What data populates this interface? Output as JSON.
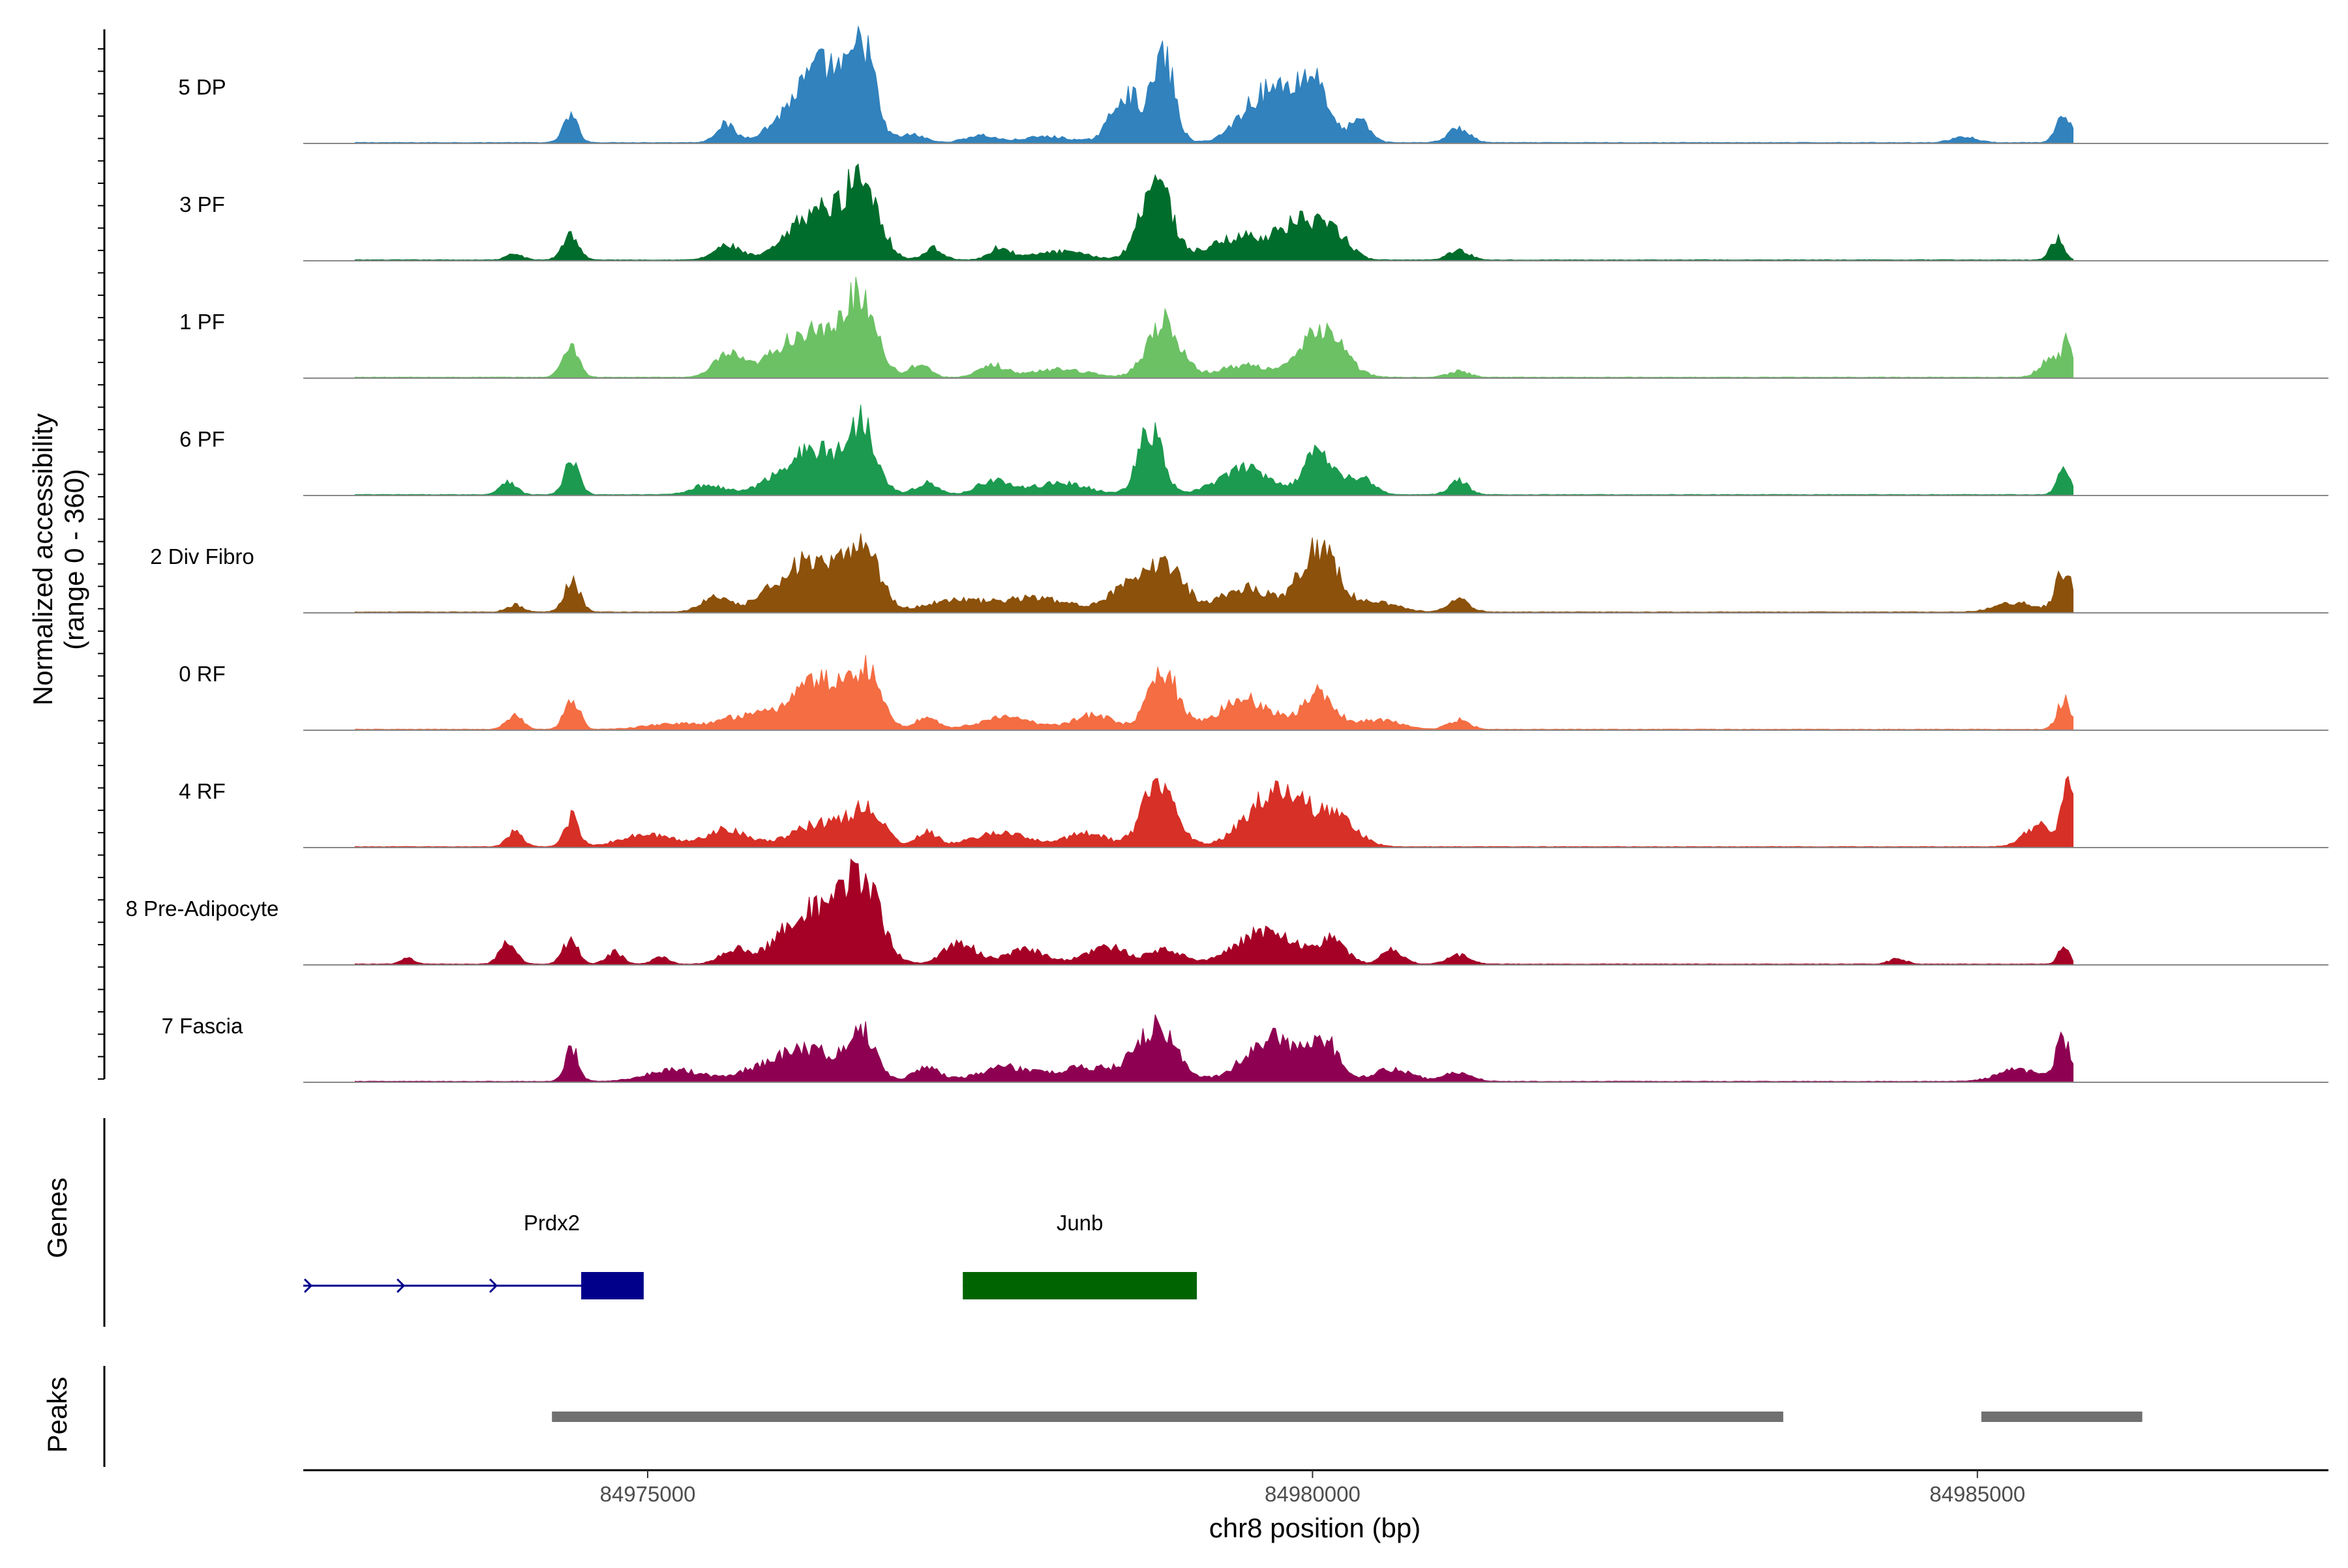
{
  "chart_data": {
    "type": "area",
    "chromosome": "chr8",
    "xlabel": "chr8 position (bp)",
    "ylabel": "Normalized accessibility",
    "ylabel_range": "(range 0 - 360)",
    "ylim": [
      0,
      360
    ],
    "xlim": [
      84972410,
      84987640
    ],
    "x_ticks": [
      84975000,
      84980000,
      84985000
    ],
    "x_tick_labels": [
      "84975000",
      "84980000",
      "84985000"
    ],
    "signal_range": [
      84972800,
      84985720
    ],
    "baseline_color": "#888888",
    "tracks": [
      {
        "name": "5 DP",
        "color": "#3182bd"
      },
      {
        "name": "3 PF",
        "color": "#006d2c"
      },
      {
        "name": "1 PF",
        "color": "#6cc164"
      },
      {
        "name": "6 PF",
        "color": "#1c9a4f"
      },
      {
        "name": "2 Div Fibro",
        "color": "#8c510a"
      },
      {
        "name": "0 RF",
        "color": "#f46d43"
      },
      {
        "name": "4 RF",
        "color": "#d73027"
      },
      {
        "name": "8 Pre-Adipocyte",
        "color": "#a50026"
      },
      {
        "name": "7 Fascia",
        "color": "#8e0152"
      }
    ],
    "peaks_by_track": [
      [
        [
          84974420,
          0.22,
          55
        ],
        [
          84975580,
          0.15,
          70
        ],
        [
          84976200,
          0.28,
          220
        ],
        [
          84976400,
          0.45,
          200
        ],
        [
          84976630,
          0.62,
          75
        ],
        [
          84977000,
          0.06,
          90
        ],
        [
          84977500,
          0.06,
          110
        ],
        [
          84978000,
          0.05,
          180
        ],
        [
          84978600,
          0.42,
          110
        ],
        [
          84978880,
          0.72,
          80
        ],
        [
          84979600,
          0.35,
          160
        ],
        [
          84979900,
          0.42,
          150
        ],
        [
          84980050,
          0.28,
          80
        ],
        [
          84980350,
          0.18,
          80
        ],
        [
          84981100,
          0.12,
          80
        ],
        [
          84984900,
          0.05,
          90
        ],
        [
          84985650,
          0.22,
          55
        ]
      ],
      [
        [
          84974000,
          0.05,
          60
        ],
        [
          84974420,
          0.22,
          60
        ],
        [
          84975600,
          0.12,
          100
        ],
        [
          84976280,
          0.42,
          200
        ],
        [
          84976620,
          0.62,
          120
        ],
        [
          84977150,
          0.1,
          70
        ],
        [
          84977650,
          0.1,
          80
        ],
        [
          84978100,
          0.07,
          200
        ],
        [
          84978820,
          0.72,
          110
        ],
        [
          84979500,
          0.2,
          250
        ],
        [
          84979950,
          0.3,
          150
        ],
        [
          84980200,
          0.15,
          100
        ],
        [
          84981100,
          0.08,
          80
        ],
        [
          84985600,
          0.18,
          50
        ]
      ],
      [
        [
          84974420,
          0.28,
          60
        ],
        [
          84975600,
          0.18,
          100
        ],
        [
          84976200,
          0.38,
          240
        ],
        [
          84976600,
          0.62,
          120
        ],
        [
          84977050,
          0.12,
          70
        ],
        [
          84977600,
          0.1,
          100
        ],
        [
          84978100,
          0.07,
          200
        ],
        [
          84978880,
          0.48,
          120
        ],
        [
          84979500,
          0.1,
          200
        ],
        [
          84980080,
          0.42,
          150
        ],
        [
          84981100,
          0.05,
          80
        ],
        [
          84985550,
          0.15,
          80
        ],
        [
          84985680,
          0.28,
          40
        ]
      ],
      [
        [
          84973950,
          0.12,
          60
        ],
        [
          84974430,
          0.28,
          55
        ],
        [
          84975450,
          0.08,
          120
        ],
        [
          84976250,
          0.38,
          240
        ],
        [
          84976620,
          0.52,
          100
        ],
        [
          84977100,
          0.1,
          80
        ],
        [
          84977600,
          0.12,
          120
        ],
        [
          84978100,
          0.1,
          200
        ],
        [
          84978780,
          0.55,
          90
        ],
        [
          84979500,
          0.22,
          200
        ],
        [
          84980050,
          0.4,
          100
        ],
        [
          84980350,
          0.15,
          100
        ],
        [
          84981100,
          0.12,
          70
        ],
        [
          84985650,
          0.2,
          50
        ]
      ],
      [
        [
          84974000,
          0.06,
          60
        ],
        [
          84974430,
          0.27,
          60
        ],
        [
          84975500,
          0.12,
          100
        ],
        [
          84976200,
          0.42,
          240
        ],
        [
          84976620,
          0.52,
          120
        ],
        [
          84977300,
          0.1,
          200
        ],
        [
          84977900,
          0.12,
          250
        ],
        [
          84978900,
          0.4,
          130
        ],
        [
          84978600,
          0.2,
          150
        ],
        [
          84979500,
          0.2,
          200
        ],
        [
          84980050,
          0.55,
          140
        ],
        [
          84980500,
          0.08,
          150
        ],
        [
          84981100,
          0.1,
          80
        ],
        [
          84985300,
          0.08,
          150
        ],
        [
          84985650,
          0.35,
          60
        ]
      ],
      [
        [
          84974000,
          0.12,
          60
        ],
        [
          84974430,
          0.27,
          55
        ],
        [
          84975200,
          0.05,
          200
        ],
        [
          84975700,
          0.1,
          150
        ],
        [
          84976300,
          0.42,
          240
        ],
        [
          84976650,
          0.38,
          100
        ],
        [
          84977100,
          0.1,
          80
        ],
        [
          84977700,
          0.1,
          200
        ],
        [
          84978350,
          0.12,
          150
        ],
        [
          84978880,
          0.48,
          110
        ],
        [
          84979500,
          0.25,
          200
        ],
        [
          84980050,
          0.3,
          120
        ],
        [
          84980500,
          0.08,
          150
        ],
        [
          84981100,
          0.08,
          80
        ],
        [
          84985650,
          0.25,
          50
        ]
      ],
      [
        [
          84974000,
          0.12,
          60
        ],
        [
          84974430,
          0.25,
          55
        ],
        [
          84975000,
          0.1,
          200
        ],
        [
          84975600,
          0.15,
          150
        ],
        [
          84976300,
          0.2,
          200
        ],
        [
          84976650,
          0.3,
          120
        ],
        [
          84977100,
          0.12,
          80
        ],
        [
          84977650,
          0.12,
          200
        ],
        [
          84978300,
          0.12,
          150
        ],
        [
          84978850,
          0.58,
          120
        ],
        [
          84979750,
          0.5,
          220
        ],
        [
          84980200,
          0.2,
          140
        ],
        [
          84985450,
          0.18,
          100
        ],
        [
          84985680,
          0.55,
          45
        ]
      ],
      [
        [
          84973200,
          0.05,
          50
        ],
        [
          84973950,
          0.18,
          60
        ],
        [
          84974420,
          0.2,
          60
        ],
        [
          84974750,
          0.1,
          60
        ],
        [
          84975100,
          0.06,
          60
        ],
        [
          84975650,
          0.12,
          100
        ],
        [
          84976200,
          0.45,
          200
        ],
        [
          84976600,
          0.72,
          140
        ],
        [
          84977350,
          0.18,
          120
        ],
        [
          84977850,
          0.12,
          150
        ],
        [
          84978450,
          0.15,
          150
        ],
        [
          84978900,
          0.12,
          120
        ],
        [
          84979650,
          0.28,
          220
        ],
        [
          84980150,
          0.2,
          100
        ],
        [
          84980600,
          0.12,
          80
        ],
        [
          84981100,
          0.08,
          80
        ],
        [
          84984400,
          0.05,
          60
        ],
        [
          84985650,
          0.15,
          40
        ]
      ],
      [
        [
          84974430,
          0.28,
          50
        ],
        [
          84975200,
          0.1,
          200
        ],
        [
          84975900,
          0.12,
          200
        ],
        [
          84976250,
          0.25,
          200
        ],
        [
          84976620,
          0.38,
          100
        ],
        [
          84977100,
          0.12,
          100
        ],
        [
          84977700,
          0.12,
          200
        ],
        [
          84978300,
          0.12,
          200
        ],
        [
          84978820,
          0.45,
          150
        ],
        [
          84979700,
          0.38,
          200
        ],
        [
          84980100,
          0.3,
          100
        ],
        [
          84980600,
          0.1,
          150
        ],
        [
          84981100,
          0.08,
          100
        ],
        [
          84985300,
          0.1,
          150
        ],
        [
          84985650,
          0.35,
          60
        ]
      ]
    ],
    "genes": [
      {
        "name": "Prdx2",
        "strand": "+",
        "start": 84972410,
        "end": 84974970,
        "exon": [
          84974500,
          84974970
        ],
        "color": "#00008b"
      },
      {
        "name": "Junb",
        "strand": "+",
        "start": 84977370,
        "end": 84979130,
        "exon": [
          84977370,
          84979130
        ],
        "color": "#006400"
      }
    ],
    "peaks_label": "Peaks",
    "genes_label": "Genes",
    "peaks": [
      [
        84974280,
        84983540
      ],
      [
        84985030,
        84986240
      ]
    ],
    "peak_color": "#707070"
  }
}
